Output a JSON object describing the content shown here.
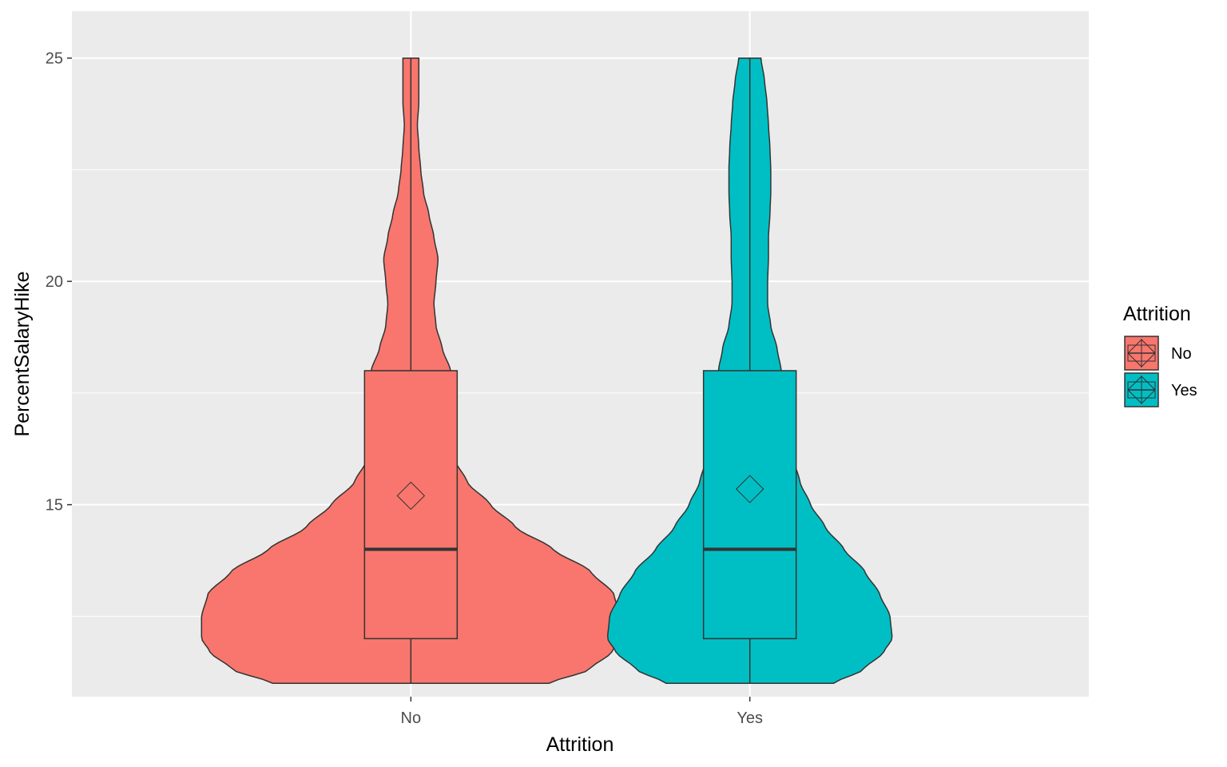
{
  "chart_data": {
    "type": "violin",
    "title": "",
    "xlabel": "Attrition",
    "ylabel": "PercentSalaryHike",
    "categories": [
      "No",
      "Yes"
    ],
    "ylim": [
      10.7,
      26.05
    ],
    "yticks": [
      15,
      20,
      25
    ],
    "ytick_labels": [
      "15",
      "20",
      "25"
    ],
    "grid": true,
    "legend": {
      "title": "Attrition",
      "position": "right",
      "entries": [
        {
          "label": "No",
          "color": "#F8766D"
        },
        {
          "label": "Yes",
          "color": "#00BFC4"
        }
      ]
    },
    "series": [
      {
        "name": "No",
        "color": "#F8766D",
        "box": {
          "min": 11,
          "q1": 12,
          "median": 14,
          "q3": 18,
          "max": 25
        },
        "mean": 15.2,
        "density_profile": [
          [
            11.0,
            0.66
          ],
          [
            11.3,
            0.85
          ],
          [
            11.7,
            0.96
          ],
          [
            12.0,
            1.0
          ],
          [
            12.5,
            1.0
          ],
          [
            13.0,
            0.97
          ],
          [
            13.5,
            0.86
          ],
          [
            14.0,
            0.68
          ],
          [
            14.5,
            0.5
          ],
          [
            15.0,
            0.38
          ],
          [
            15.5,
            0.27
          ],
          [
            16.0,
            0.21
          ],
          [
            16.5,
            0.2
          ],
          [
            17.0,
            0.21
          ],
          [
            17.5,
            0.21
          ],
          [
            18.0,
            0.19
          ],
          [
            18.5,
            0.15
          ],
          [
            19.0,
            0.12
          ],
          [
            19.5,
            0.11
          ],
          [
            20.0,
            0.12
          ],
          [
            20.5,
            0.13
          ],
          [
            21.0,
            0.11
          ],
          [
            21.5,
            0.086
          ],
          [
            22.0,
            0.06
          ],
          [
            22.5,
            0.047
          ],
          [
            23.0,
            0.038
          ],
          [
            23.5,
            0.031
          ],
          [
            24.0,
            0.038
          ],
          [
            24.5,
            0.038
          ],
          [
            25.0,
            0.038
          ]
        ]
      },
      {
        "name": "Yes",
        "color": "#00BFC4",
        "box": {
          "min": 11,
          "q1": 12,
          "median": 14,
          "q3": 18,
          "max": 25
        },
        "mean": 15.35,
        "density_profile": [
          [
            11.0,
            0.4
          ],
          [
            11.3,
            0.54
          ],
          [
            11.7,
            0.64
          ],
          [
            12.0,
            0.68
          ],
          [
            12.5,
            0.67
          ],
          [
            13.0,
            0.62
          ],
          [
            13.5,
            0.55
          ],
          [
            14.0,
            0.45
          ],
          [
            14.5,
            0.36
          ],
          [
            15.0,
            0.29
          ],
          [
            15.5,
            0.24
          ],
          [
            16.0,
            0.21
          ],
          [
            16.5,
            0.2
          ],
          [
            17.0,
            0.19
          ],
          [
            17.5,
            0.17
          ],
          [
            18.0,
            0.15
          ],
          [
            18.5,
            0.13
          ],
          [
            19.0,
            0.1
          ],
          [
            19.5,
            0.085
          ],
          [
            20.0,
            0.085
          ],
          [
            20.5,
            0.089
          ],
          [
            21.0,
            0.089
          ],
          [
            21.5,
            0.096
          ],
          [
            22.0,
            0.1
          ],
          [
            22.5,
            0.1
          ],
          [
            23.0,
            0.096
          ],
          [
            23.5,
            0.089
          ],
          [
            24.0,
            0.082
          ],
          [
            24.5,
            0.07
          ],
          [
            25.0,
            0.053
          ]
        ]
      }
    ]
  }
}
